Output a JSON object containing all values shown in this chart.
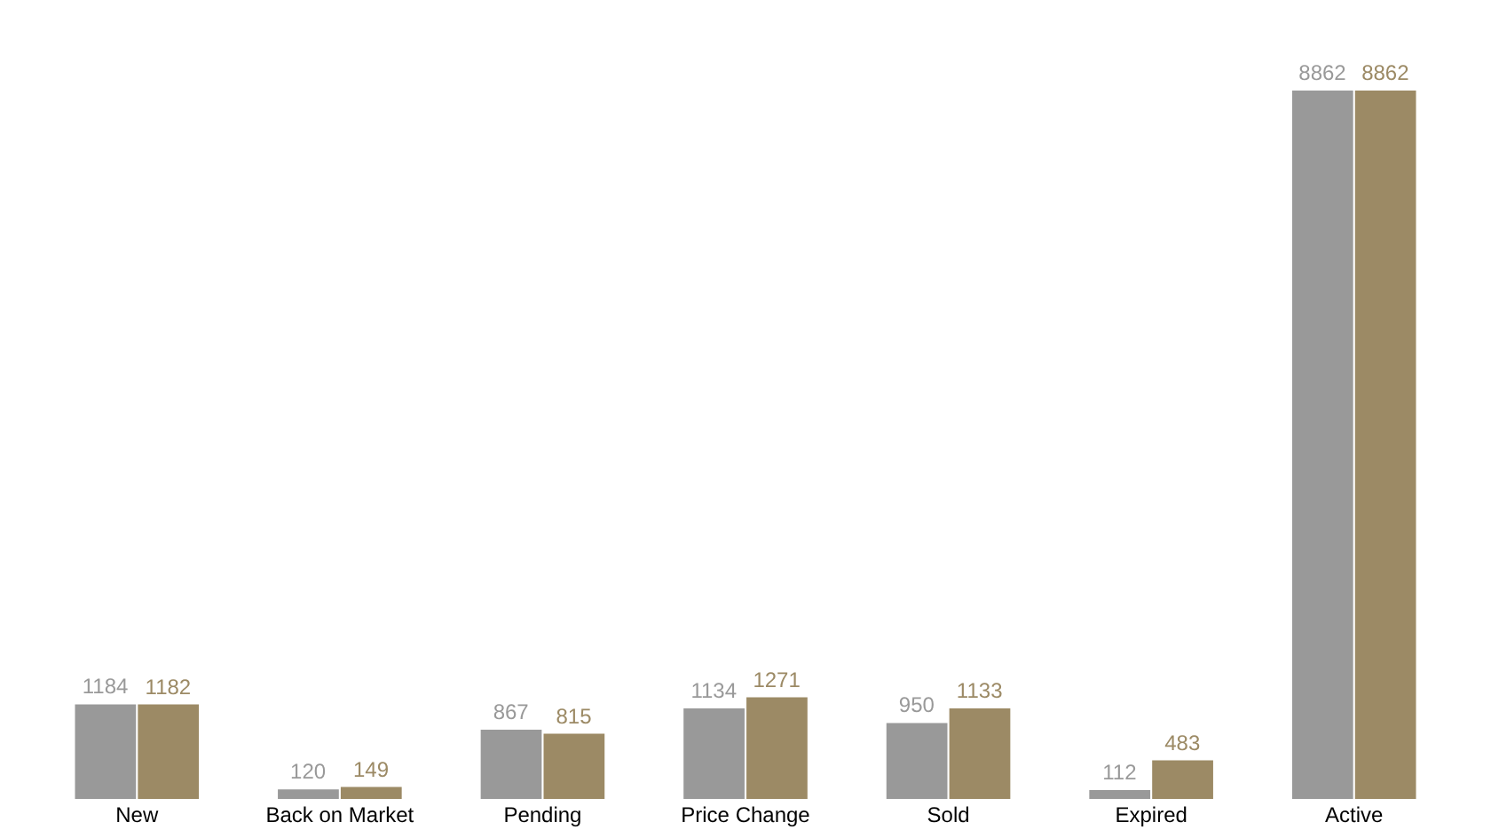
{
  "chart_data": {
    "type": "bar",
    "categories": [
      "New",
      "Back on Market",
      "Pending",
      "Price Change",
      "Sold",
      "Expired",
      "Active"
    ],
    "series": [
      {
        "color": "#999999",
        "values": [
          1184,
          120,
          867,
          1134,
          950,
          112,
          8862
        ]
      },
      {
        "color": "#9c8a65",
        "values": [
          1182,
          149,
          815,
          1271,
          1133,
          483,
          8862
        ]
      }
    ],
    "data_labels": true,
    "grid": false,
    "legend": false,
    "tick_labels": "x"
  }
}
